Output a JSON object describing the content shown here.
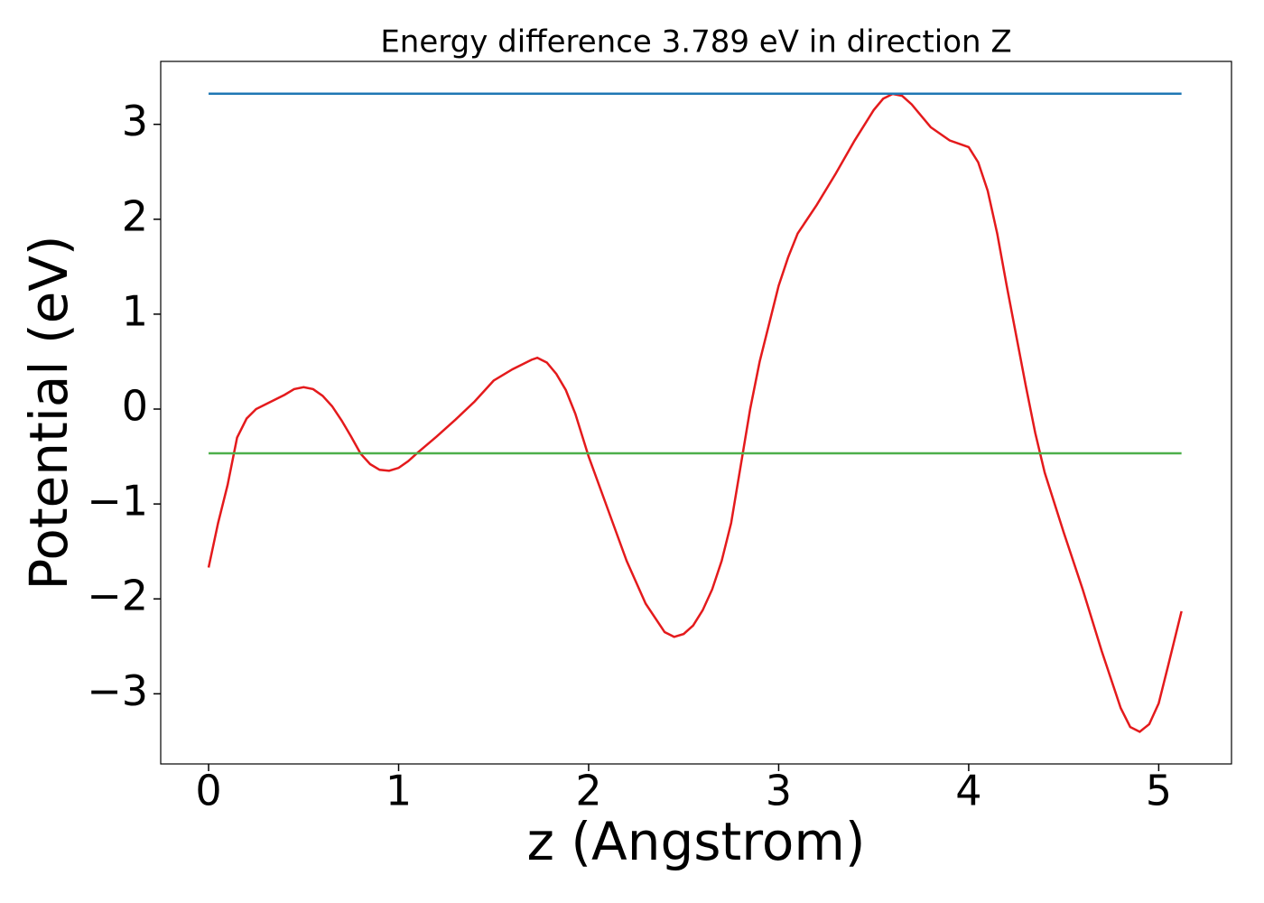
{
  "chart_data": {
    "type": "line",
    "title": "Energy difference 3.789 eV in direction Z",
    "x_label": "z (Angstrom)",
    "y_label": "Potential (eV)",
    "xlim": [
      -0.252,
      5.383
    ],
    "ylim": [
      -3.739,
      3.663
    ],
    "xticks": [
      0,
      1,
      2,
      3,
      4,
      5
    ],
    "yticks": [
      {
        "value": -3,
        "label": "−3"
      },
      {
        "value": -2,
        "label": "−2"
      },
      {
        "value": -1,
        "label": "−1"
      },
      0,
      1,
      2,
      3
    ],
    "series": [
      {
        "color": "#e41a1c",
        "x": [
          0,
          0.05,
          0.1,
          0.15,
          0.2,
          0.25,
          0.3,
          0.4,
          0.45,
          0.5,
          0.55,
          0.6,
          0.65,
          0.7,
          0.75,
          0.8,
          0.85,
          0.9,
          0.95,
          1.0,
          1.05,
          1.1,
          1.2,
          1.3,
          1.4,
          1.5,
          1.6,
          1.7,
          1.73,
          1.78,
          1.83,
          1.88,
          1.93,
          2.0,
          2.1,
          2.2,
          2.3,
          2.4,
          2.45,
          2.5,
          2.55,
          2.6,
          2.65,
          2.7,
          2.75,
          2.8,
          2.85,
          2.9,
          2.95,
          3.0,
          3.05,
          3.1,
          3.2,
          3.3,
          3.4,
          3.5,
          3.55,
          3.6,
          3.65,
          3.7,
          3.8,
          3.9,
          4.0,
          4.05,
          4.1,
          4.15,
          4.2,
          4.3,
          4.35,
          4.4,
          4.5,
          4.6,
          4.7,
          4.8,
          4.85,
          4.9,
          4.95,
          5.0,
          5.05,
          5.12
        ],
        "values": [
          -1.67,
          -1.2,
          -0.8,
          -0.3,
          -0.1,
          0.0,
          0.05,
          0.15,
          0.21,
          0.23,
          0.21,
          0.14,
          0.03,
          -0.12,
          -0.29,
          -0.47,
          -0.58,
          -0.64,
          -0.65,
          -0.62,
          -0.55,
          -0.46,
          -0.29,
          -0.11,
          0.08,
          0.3,
          0.42,
          0.52,
          0.54,
          0.49,
          0.37,
          0.2,
          -0.05,
          -0.5,
          -1.05,
          -1.6,
          -2.05,
          -2.35,
          -2.4,
          -2.37,
          -2.28,
          -2.12,
          -1.9,
          -1.6,
          -1.2,
          -0.6,
          0.0,
          0.5,
          0.9,
          1.3,
          1.6,
          1.85,
          2.15,
          2.48,
          2.83,
          3.15,
          3.27,
          3.32,
          3.3,
          3.21,
          2.97,
          2.83,
          2.76,
          2.6,
          2.3,
          1.85,
          1.3,
          0.25,
          -0.25,
          -0.67,
          -1.3,
          -1.9,
          -2.55,
          -3.15,
          -3.35,
          -3.4,
          -3.32,
          -3.1,
          -2.7,
          -2.13
        ]
      },
      {
        "color": "#1f77b4",
        "x": [
          0,
          5.12
        ],
        "values": [
          3.323,
          3.323
        ]
      },
      {
        "color": "#4daf4a",
        "x": [
          0,
          5.12
        ],
        "values": [
          -0.466,
          -0.466
        ]
      }
    ]
  }
}
